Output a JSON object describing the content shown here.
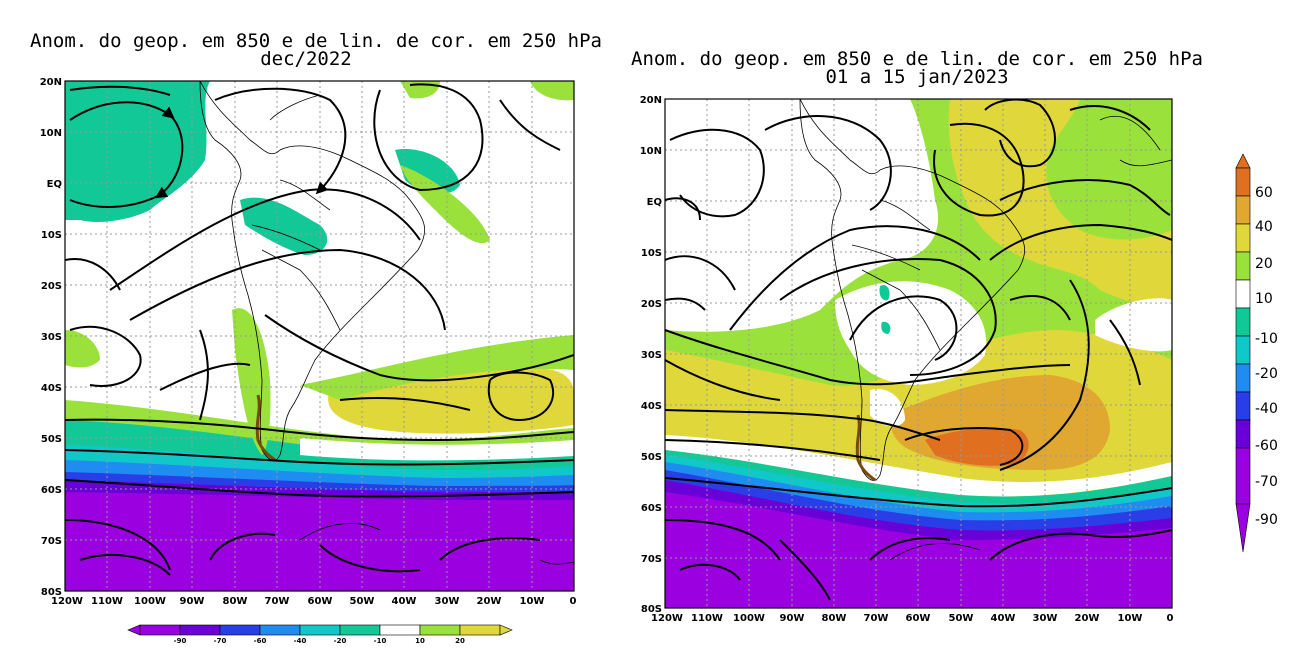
{
  "maps": [
    {
      "title_line1": "Anom. do geop. em 850 e de lin. de cor. em 250 hPa",
      "title_line2": "dec/2022",
      "lat_labels": [
        "20N",
        "10N",
        "EQ",
        "10S",
        "20S",
        "30S",
        "40S",
        "50S",
        "60S",
        "70S",
        "80S"
      ],
      "lon_labels": [
        "120W",
        "110W",
        "100W",
        "90W",
        "80W",
        "70W",
        "60W",
        "50W",
        "40W",
        "30W",
        "20W",
        "10W",
        "0"
      ]
    },
    {
      "title_line1": "Anom. do geop. em 850 e de lin. de cor. em 250 hPa",
      "title_line2": "01 a 15 jan/2023",
      "lat_labels": [
        "20N",
        "10N",
        "EQ",
        "10S",
        "20S",
        "30S",
        "40S",
        "50S",
        "60S",
        "70S",
        "80S"
      ],
      "lon_labels": [
        "120W",
        "110W",
        "100W",
        "90W",
        "80W",
        "70W",
        "60W",
        "50W",
        "40W",
        "30W",
        "20W",
        "10W",
        "0"
      ]
    }
  ],
  "colorbar_horizontal": {
    "labels": [
      "-90",
      "-70",
      "-60",
      "-40",
      "-20",
      "-10",
      "10",
      "20"
    ],
    "colors": [
      "#9a00e0",
      "#6a00d8",
      "#2a3ee8",
      "#1e8cf0",
      "#10c8c8",
      "#12c896",
      "#ffffff",
      "#9ae13c",
      "#e0d83a"
    ]
  },
  "colorbar_vertical": {
    "labels": [
      "60",
      "40",
      "20",
      "10",
      "-10",
      "-20",
      "-40",
      "-60",
      "-70",
      "-90"
    ],
    "colors": [
      "#e07020",
      "#e0a830",
      "#e0d83a",
      "#9ae13c",
      "#ffffff",
      "#12c896",
      "#10c8c8",
      "#1e8cf0",
      "#2a3ee8",
      "#6a00d8",
      "#9a00e0"
    ]
  },
  "legend_colors": {
    "purple": "#9a00e0",
    "violet": "#6a00d8",
    "blue": "#2a3ee8",
    "lightblue": "#1e8cf0",
    "cyan": "#10c8c8",
    "teal": "#12c896",
    "white": "#ffffff",
    "green": "#9ae13c",
    "yellow": "#e0d83a",
    "orange": "#e0a830",
    "darkorange": "#e07020"
  }
}
